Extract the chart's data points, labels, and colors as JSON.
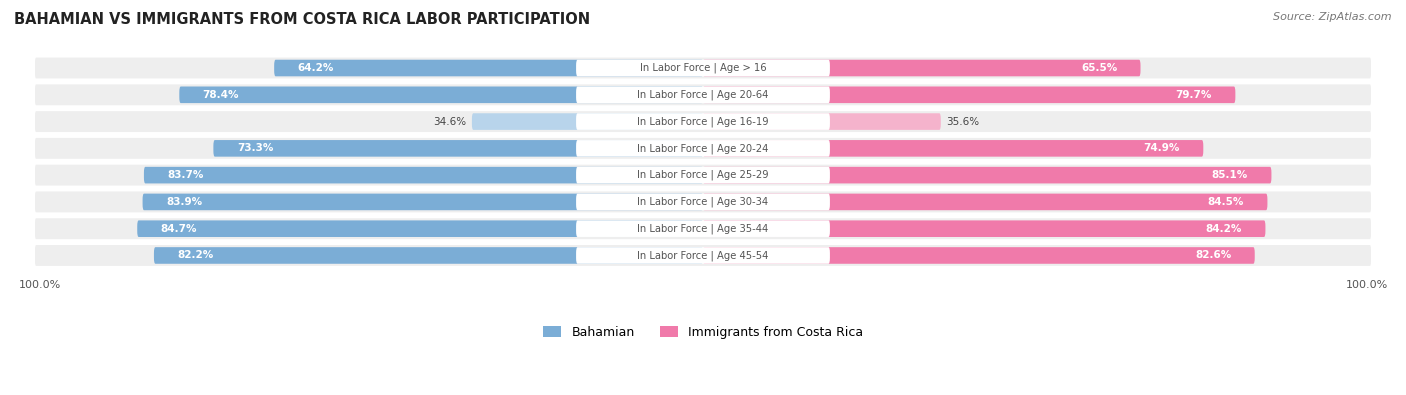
{
  "title": "BAHAMIAN VS IMMIGRANTS FROM COSTA RICA LABOR PARTICIPATION",
  "source": "Source: ZipAtlas.com",
  "categories": [
    "In Labor Force | Age > 16",
    "In Labor Force | Age 20-64",
    "In Labor Force | Age 16-19",
    "In Labor Force | Age 20-24",
    "In Labor Force | Age 25-29",
    "In Labor Force | Age 30-34",
    "In Labor Force | Age 35-44",
    "In Labor Force | Age 45-54"
  ],
  "bahamian": [
    64.2,
    78.4,
    34.6,
    73.3,
    83.7,
    83.9,
    84.7,
    82.2
  ],
  "costa_rica": [
    65.5,
    79.7,
    35.6,
    74.9,
    85.1,
    84.5,
    84.2,
    82.6
  ],
  "bahamian_color": "#7badd6",
  "costa_rica_color": "#f07aaa",
  "bahamian_light_color": "#b8d4eb",
  "costa_rica_light_color": "#f5b3cc",
  "bg_row_color": "#eeeeee",
  "title_color": "#222222",
  "legend_bahamian": "Bahamian",
  "legend_costa_rica": "Immigrants from Costa Rica",
  "max_val": 100.0
}
